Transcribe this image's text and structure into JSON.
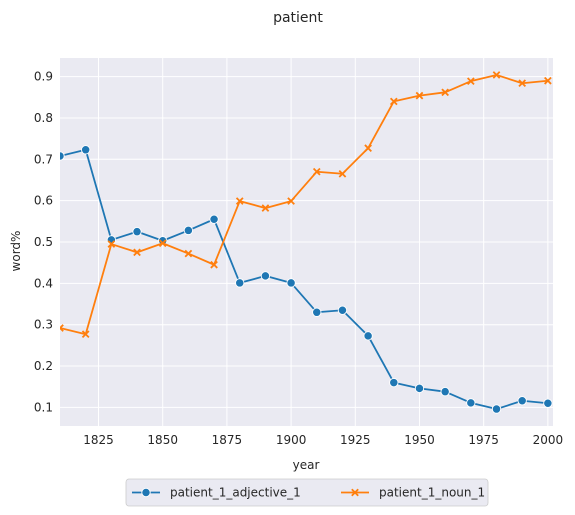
{
  "chart_data": {
    "type": "line",
    "title": "patient",
    "xlabel": "year",
    "ylabel": "word%",
    "xlim": [
      1810,
      2002
    ],
    "ylim": [
      0.055,
      0.945
    ],
    "x_ticks": [
      1825,
      1850,
      1875,
      1900,
      1925,
      1950,
      1975,
      2000
    ],
    "y_ticks": [
      0.1,
      0.2,
      0.3,
      0.4,
      0.5,
      0.6,
      0.7,
      0.8,
      0.9
    ],
    "grid": true,
    "legend_position": "bottom-center",
    "x": [
      1810,
      1820,
      1830,
      1840,
      1850,
      1860,
      1870,
      1880,
      1890,
      1900,
      1910,
      1920,
      1930,
      1940,
      1950,
      1960,
      1970,
      1980,
      1990,
      2000
    ],
    "series": [
      {
        "name": "patient_1_adjective_1",
        "color": "#1f77b4",
        "marker": "circle",
        "values": [
          0.708,
          0.723,
          0.505,
          0.525,
          0.503,
          0.528,
          0.555,
          0.401,
          0.418,
          0.401,
          0.33,
          0.335,
          0.273,
          0.16,
          0.146,
          0.138,
          0.111,
          0.096,
          0.116,
          0.11
        ]
      },
      {
        "name": "patient_1_noun_1",
        "color": "#ff7f0e",
        "marker": "x",
        "values": [
          0.292,
          0.277,
          0.495,
          0.475,
          0.497,
          0.472,
          0.445,
          0.599,
          0.582,
          0.599,
          0.67,
          0.665,
          0.727,
          0.84,
          0.854,
          0.862,
          0.889,
          0.904,
          0.884,
          0.89
        ]
      }
    ]
  }
}
